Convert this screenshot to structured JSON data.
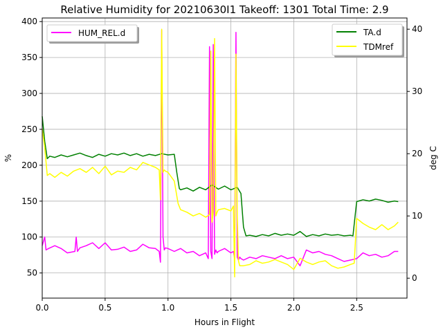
{
  "chart_data": {
    "type": "line",
    "title": "Relative Humidity for 20210630I1 Takeoff: 1301 Total Time: 2.9",
    "xlabel": "Hours in Flight",
    "ylabel_left": "%",
    "ylabel_right": "deg C",
    "xlim": [
      0,
      2.9
    ],
    "ylim_left": [
      15,
      405
    ],
    "ylim_right": [
      -3.2,
      41.8
    ],
    "x_ticks": [
      0.0,
      0.5,
      1.0,
      1.5,
      2.0,
      2.5
    ],
    "x_tick_labels": [
      "0.0",
      "0.5",
      "1.0",
      "1.5",
      "2.0",
      "2.5"
    ],
    "y_left_ticks": [
      50,
      100,
      150,
      200,
      250,
      300,
      350,
      400
    ],
    "y_left_tick_labels": [
      "50",
      "100",
      "150",
      "200",
      "250",
      "300",
      "350",
      "400"
    ],
    "y_right_ticks": [
      0,
      10,
      20,
      30,
      40
    ],
    "y_right_tick_labels": [
      "0",
      "10",
      "20",
      "30",
      "40"
    ],
    "grid": true,
    "legend_left": {
      "placement": "top-left",
      "entries": [
        "HUM_REL.d"
      ]
    },
    "legend_right": {
      "placement": "top-right",
      "entries": [
        "TA.d",
        "TDMref"
      ]
    },
    "colors": {
      "HUM_REL.d": "#ff00ff",
      "TA.d": "#008000",
      "TDMref": "#ffff00",
      "grid": "#b0b0b0"
    },
    "series": [
      {
        "name": "HUM_REL.d",
        "axis": "left",
        "color": "#ff00ff",
        "x": [
          0.0,
          0.02,
          0.03,
          0.05,
          0.1,
          0.15,
          0.2,
          0.26,
          0.27,
          0.28,
          0.3,
          0.35,
          0.4,
          0.45,
          0.5,
          0.55,
          0.6,
          0.65,
          0.7,
          0.75,
          0.8,
          0.85,
          0.9,
          0.93,
          0.94,
          0.95,
          0.96,
          0.97,
          0.98,
          1.0,
          1.05,
          1.1,
          1.15,
          1.2,
          1.25,
          1.3,
          1.32,
          1.33,
          1.34,
          1.35,
          1.36,
          1.37,
          1.38,
          1.39,
          1.4,
          1.45,
          1.5,
          1.52,
          1.53,
          1.54,
          1.55,
          1.56,
          1.57,
          1.58,
          1.6,
          1.65,
          1.7,
          1.75,
          1.8,
          1.85,
          1.9,
          1.95,
          2.0,
          2.05,
          2.1,
          2.15,
          2.2,
          2.25,
          2.3,
          2.35,
          2.4,
          2.45,
          2.5,
          2.55,
          2.6,
          2.65,
          2.7,
          2.75,
          2.8,
          2.83
        ],
        "y": [
          88,
          100,
          82,
          84,
          88,
          84,
          78,
          80,
          100,
          80,
          85,
          88,
          92,
          84,
          92,
          82,
          83,
          86,
          80,
          82,
          90,
          85,
          84,
          80,
          65,
          388,
          100,
          82,
          85,
          84,
          80,
          84,
          78,
          80,
          74,
          78,
          70,
          365,
          80,
          70,
          368,
          76,
          82,
          78,
          80,
          84,
          78,
          80,
          70,
          385,
          72,
          68,
          72,
          70,
          68,
          72,
          70,
          74,
          72,
          70,
          74,
          70,
          72,
          60,
          82,
          78,
          80,
          76,
          74,
          70,
          66,
          68,
          70,
          78,
          74,
          76,
          72,
          74,
          80,
          80
        ]
      },
      {
        "name": "TA.d",
        "axis": "right",
        "color": "#008000",
        "x": [
          0.0,
          0.02,
          0.04,
          0.06,
          0.1,
          0.15,
          0.2,
          0.25,
          0.3,
          0.35,
          0.4,
          0.45,
          0.5,
          0.55,
          0.6,
          0.65,
          0.7,
          0.75,
          0.8,
          0.85,
          0.9,
          0.95,
          1.0,
          1.05,
          1.07,
          1.09,
          1.1,
          1.15,
          1.2,
          1.25,
          1.3,
          1.35,
          1.4,
          1.45,
          1.5,
          1.55,
          1.58,
          1.6,
          1.62,
          1.65,
          1.7,
          1.75,
          1.8,
          1.85,
          1.9,
          1.95,
          2.0,
          2.05,
          2.1,
          2.15,
          2.2,
          2.25,
          2.3,
          2.35,
          2.4,
          2.45,
          2.47,
          2.49,
          2.5,
          2.55,
          2.6,
          2.65,
          2.7,
          2.75,
          2.8,
          2.83
        ],
        "y": [
          26,
          22,
          19.2,
          19.6,
          19.4,
          19.8,
          19.5,
          19.8,
          20.1,
          19.7,
          19.4,
          19.9,
          19.6,
          20.0,
          19.8,
          20.1,
          19.7,
          20.0,
          19.6,
          19.9,
          19.7,
          20.0,
          19.8,
          19.9,
          17.0,
          14.4,
          14.2,
          14.5,
          14.0,
          14.6,
          14.2,
          15.0,
          14.3,
          14.8,
          14.2,
          14.6,
          13.6,
          8.2,
          6.8,
          6.9,
          6.7,
          7.0,
          6.8,
          7.2,
          6.9,
          7.1,
          6.9,
          7.5,
          6.7,
          7.0,
          6.8,
          7.1,
          6.9,
          7.0,
          6.8,
          6.9,
          6.8,
          10.5,
          12.3,
          12.6,
          12.4,
          12.7,
          12.5,
          12.2,
          12.4,
          12.3
        ]
      },
      {
        "name": "TDMref",
        "axis": "right",
        "color": "#ffff00",
        "x": [
          0.0,
          0.02,
          0.04,
          0.06,
          0.1,
          0.15,
          0.2,
          0.25,
          0.3,
          0.35,
          0.4,
          0.45,
          0.5,
          0.55,
          0.6,
          0.65,
          0.7,
          0.75,
          0.8,
          0.85,
          0.9,
          0.93,
          0.94,
          0.95,
          0.96,
          0.97,
          0.98,
          1.0,
          1.05,
          1.08,
          1.1,
          1.15,
          1.2,
          1.25,
          1.3,
          1.33,
          1.34,
          1.35,
          1.36,
          1.37,
          1.38,
          1.39,
          1.4,
          1.45,
          1.5,
          1.52,
          1.53,
          1.54,
          1.55,
          1.56,
          1.57,
          1.6,
          1.65,
          1.7,
          1.75,
          1.8,
          1.85,
          1.9,
          1.95,
          2.0,
          2.05,
          2.1,
          2.15,
          2.2,
          2.25,
          2.3,
          2.35,
          2.4,
          2.45,
          2.48,
          2.5,
          2.55,
          2.6,
          2.65,
          2.7,
          2.75,
          2.8,
          2.83
        ],
        "y": [
          24,
          21,
          16.5,
          16.8,
          16.2,
          17.0,
          16.4,
          17.2,
          17.6,
          17.0,
          17.8,
          16.8,
          18.0,
          16.6,
          17.2,
          17.0,
          17.8,
          17.4,
          18.6,
          18.2,
          17.8,
          17.4,
          12.6,
          40.0,
          17.0,
          17.4,
          17.2,
          17.0,
          15.6,
          12.0,
          11.0,
          10.6,
          10.0,
          10.4,
          9.8,
          10.2,
          36.5,
          9.0,
          10.6,
          38.5,
          10.0,
          10.6,
          11.0,
          11.2,
          10.8,
          11.6,
          0.2,
          36.0,
          10.0,
          2.8,
          2.0,
          2.0,
          2.2,
          2.8,
          2.4,
          2.6,
          3.0,
          2.6,
          2.2,
          1.4,
          3.2,
          2.6,
          2.2,
          2.6,
          2.8,
          2.0,
          1.6,
          1.8,
          2.2,
          2.4,
          9.6,
          8.8,
          8.2,
          7.8,
          8.6,
          7.8,
          8.4,
          9.0
        ]
      }
    ]
  }
}
